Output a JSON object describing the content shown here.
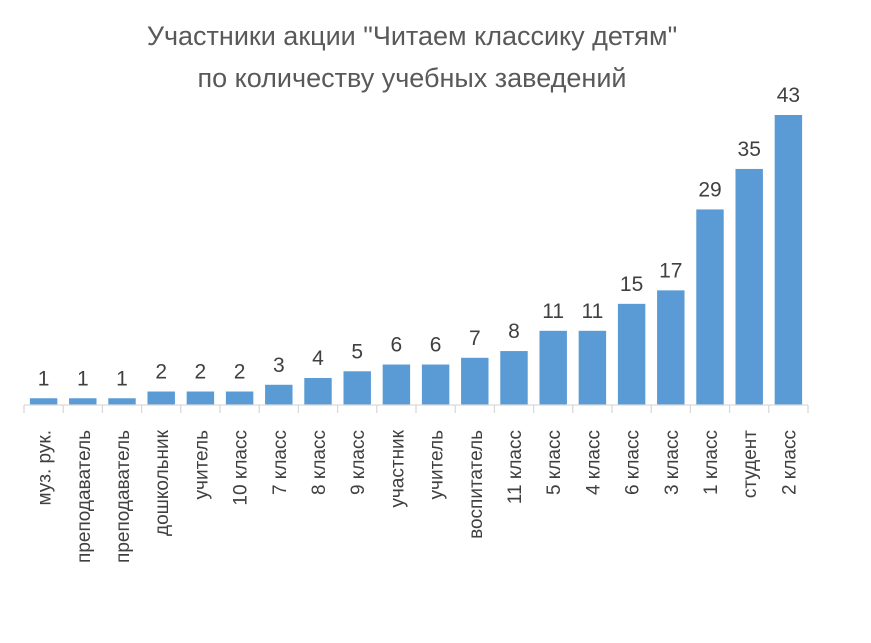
{
  "chart_data": {
    "type": "bar",
    "title": "Участники акции \"Читаем классику детям\"",
    "subtitle": "по количеству учебных заведений",
    "xlabel": "",
    "ylabel": "",
    "categories": [
      "муз. рук.",
      "преподаватель",
      "преподаватель",
      "дошкольник",
      "учитель",
      "10 класс",
      "7 класс",
      "8 класс",
      "9 класс",
      "участник",
      "учитель",
      "воспитатель",
      "11 класс",
      "5 класс",
      "4 класс",
      "6 класс",
      "3 класс",
      "1 класс",
      "студент",
      "2 класс"
    ],
    "values": [
      1,
      1,
      1,
      2,
      2,
      2,
      3,
      4,
      5,
      6,
      6,
      7,
      8,
      11,
      11,
      15,
      17,
      29,
      35,
      43
    ],
    "ylim": [
      0,
      43
    ],
    "grid": false,
    "legend": "none",
    "bar_color": "#5b9bd5",
    "axis_color": "#d9d9d9",
    "text_color": "#404040",
    "title_color": "#595959"
  }
}
